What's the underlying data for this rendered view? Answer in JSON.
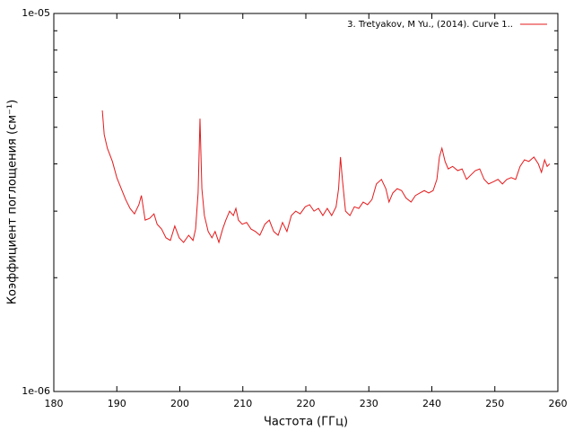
{
  "chart_data": {
    "type": "line",
    "xlabel": "Частота (ГГц)",
    "ylabel": "Коэффициент поглощения (см⁻¹)",
    "xlim": [
      180,
      260
    ],
    "xticks": [
      180,
      190,
      200,
      210,
      220,
      230,
      240,
      250,
      260
    ],
    "ylim": [
      1e-06,
      1e-05
    ],
    "ylog": true,
    "yticks": [
      {
        "value": 1e-06,
        "label": "1e-06"
      },
      {
        "value": 1e-05,
        "label": "1e-05"
      }
    ],
    "yminorticks": [
      2e-06,
      3e-06,
      4e-06,
      5e-06,
      6e-06,
      7e-06,
      8e-06,
      9e-06
    ],
    "legend": "top-right",
    "x": [
      187.7,
      188.0,
      188.5,
      189.3,
      190.0,
      190.7,
      191.4,
      192.1,
      192.8,
      193.5,
      193.9,
      194.5,
      195.2,
      195.9,
      196.4,
      197.1,
      197.8,
      198.5,
      199.2,
      199.9,
      200.6,
      201.4,
      202.1,
      202.5,
      202.9,
      203.2,
      203.5,
      203.9,
      204.5,
      205.1,
      205.6,
      206.2,
      206.8,
      207.3,
      207.9,
      208.5,
      208.9,
      209.3,
      209.9,
      210.6,
      211.3,
      212.0,
      212.7,
      213.5,
      214.2,
      214.9,
      215.6,
      216.3,
      217.0,
      217.7,
      218.4,
      219.1,
      219.9,
      220.6,
      221.3,
      222.0,
      222.7,
      223.4,
      224.1,
      224.8,
      225.2,
      225.5,
      225.8,
      226.3,
      227.0,
      227.7,
      228.4,
      229.1,
      229.8,
      230.5,
      231.2,
      232.0,
      232.7,
      233.2,
      233.8,
      234.5,
      235.2,
      235.9,
      236.7,
      237.4,
      238.1,
      238.8,
      239.5,
      240.2,
      240.8,
      241.2,
      241.6,
      242.1,
      242.6,
      243.3,
      244.1,
      244.8,
      245.5,
      246.2,
      246.9,
      247.6,
      248.3,
      249.0,
      249.8,
      250.5,
      251.2,
      251.9,
      252.6,
      253.3,
      254.0,
      254.7,
      255.4,
      256.2,
      256.9,
      257.4,
      257.9,
      258.3,
      258.7
    ],
    "series": [
      {
        "name": "3. Tretyakov, M Yu., (2014). Curve 1..",
        "color": "#e41a1c",
        "values": [
          5.54e-06,
          4.78e-06,
          4.4e-06,
          4.06e-06,
          3.68e-06,
          3.44e-06,
          3.22e-06,
          3.05e-06,
          2.95e-06,
          3.12e-06,
          3.3e-06,
          2.84e-06,
          2.87e-06,
          2.95e-06,
          2.77e-06,
          2.69e-06,
          2.55e-06,
          2.51e-06,
          2.74e-06,
          2.55e-06,
          2.48e-06,
          2.59e-06,
          2.51e-06,
          2.69e-06,
          3.35e-06,
          5.27e-06,
          3.44e-06,
          2.92e-06,
          2.65e-06,
          2.55e-06,
          2.65e-06,
          2.48e-06,
          2.69e-06,
          2.84e-06,
          3e-06,
          2.92e-06,
          3.05e-06,
          2.84e-06,
          2.77e-06,
          2.8e-06,
          2.69e-06,
          2.65e-06,
          2.59e-06,
          2.77e-06,
          2.84e-06,
          2.65e-06,
          2.59e-06,
          2.8e-06,
          2.65e-06,
          2.92e-06,
          3e-06,
          2.95e-06,
          3.08e-06,
          3.12e-06,
          3e-06,
          3.05e-06,
          2.92e-06,
          3.05e-06,
          2.92e-06,
          3.08e-06,
          3.44e-06,
          4.17e-06,
          3.64e-06,
          3e-06,
          2.92e-06,
          3.08e-06,
          3.05e-06,
          3.17e-06,
          3.12e-06,
          3.22e-06,
          3.54e-06,
          3.64e-06,
          3.44e-06,
          3.17e-06,
          3.35e-06,
          3.44e-06,
          3.4e-06,
          3.25e-06,
          3.17e-06,
          3.3e-06,
          3.35e-06,
          3.4e-06,
          3.35e-06,
          3.4e-06,
          3.64e-06,
          4.17e-06,
          4.4e-06,
          4.06e-06,
          3.88e-06,
          3.94e-06,
          3.84e-06,
          3.88e-06,
          3.64e-06,
          3.74e-06,
          3.84e-06,
          3.88e-06,
          3.64e-06,
          3.54e-06,
          3.59e-06,
          3.64e-06,
          3.54e-06,
          3.64e-06,
          3.68e-06,
          3.64e-06,
          3.94e-06,
          4.1e-06,
          4.06e-06,
          4.17e-06,
          4e-06,
          3.8e-06,
          4.1e-06,
          3.94e-06,
          4e-06
        ]
      }
    ]
  }
}
